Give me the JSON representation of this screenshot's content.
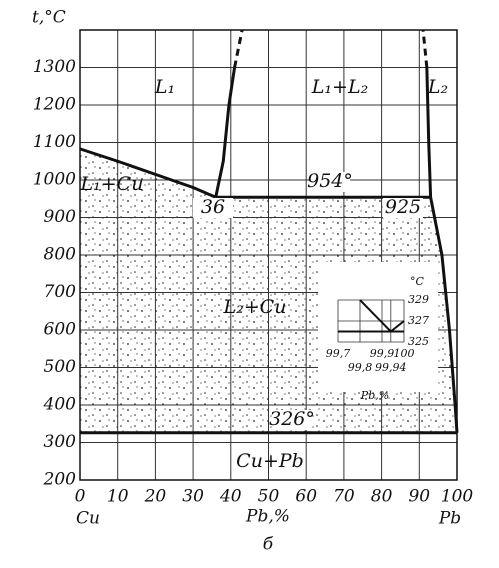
{
  "chart_data": {
    "type": "phase-diagram",
    "y_label": "t,°C",
    "x_label": "Pb,%",
    "x_left_label": "Cu",
    "x_right_label": "Pb",
    "caption": "б",
    "xlim": [
      0,
      100
    ],
    "ylim": [
      200,
      1400
    ],
    "xticks": [
      0,
      10,
      20,
      30,
      40,
      50,
      60,
      70,
      80,
      90,
      100
    ],
    "yticks": [
      200,
      300,
      400,
      500,
      600,
      700,
      800,
      900,
      1000,
      1100,
      1200,
      1300
    ],
    "grid": true,
    "color": "#111111",
    "curves": [
      {
        "x": [
          0,
          10,
          20,
          30,
          36
        ],
        "y": [
          1083,
          1050,
          1015,
          980,
          954
        ],
        "style": "solid"
      },
      {
        "x": [
          36,
          38,
          39.5,
          41
        ],
        "y": [
          954,
          1050,
          1200,
          1300
        ],
        "style": "solid"
      },
      {
        "x": [
          41,
          43
        ],
        "y": [
          1300,
          1400
        ],
        "style": "dashed"
      },
      {
        "x": [
          92,
          92.5,
          93
        ],
        "y": [
          1300,
          1100,
          954
        ],
        "style": "solid"
      },
      {
        "x": [
          92,
          91
        ],
        "y": [
          1300,
          1400
        ],
        "style": "dashed"
      },
      {
        "x": [
          36,
          93
        ],
        "y": [
          954,
          954
        ],
        "style": "solid"
      },
      {
        "x": [
          93,
          96,
          98,
          99.5,
          100
        ],
        "y": [
          954,
          800,
          600,
          400,
          326
        ],
        "style": "solid"
      },
      {
        "x": [
          0,
          100
        ],
        "y": [
          326,
          326
        ],
        "style": "solid"
      }
    ],
    "annotations": [
      "L₁",
      "L₁+L₂",
      "L₂",
      "L₁+Cu",
      "954°",
      "36",
      "925",
      "L₂+Cu",
      "326°",
      "Cu+Pb"
    ],
    "inset": {
      "y_label": "°C",
      "x_label": "Pb,%",
      "xlim": [
        99.7,
        100
      ],
      "ylim": [
        325,
        329
      ],
      "yticks": [
        325,
        327,
        329
      ],
      "xticks": [
        {
          "value": 99.7,
          "label": "99,7"
        },
        {
          "value": 99.8,
          "label": "99,8"
        },
        {
          "value": 99.9,
          "label": "99,9"
        },
        {
          "value": 99.94,
          "label": "99,94"
        },
        100
      ],
      "curves": [
        {
          "x": [
            99.8,
            99.94,
            100
          ],
          "y": [
            329,
            326,
            327
          ]
        },
        {
          "x": [
            99.7,
            100
          ],
          "y": [
            326,
            326
          ]
        }
      ]
    }
  }
}
